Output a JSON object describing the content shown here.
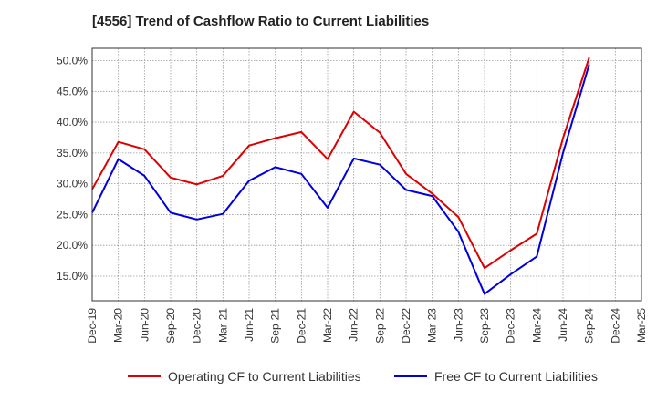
{
  "title": "[4556]  Trend of Cashflow Ratio to Current Liabilities",
  "chart_data": {
    "type": "line",
    "x": [
      "Dec-19",
      "Mar-20",
      "Jun-20",
      "Sep-20",
      "Dec-20",
      "Mar-21",
      "Jun-21",
      "Sep-21",
      "Dec-21",
      "Mar-22",
      "Jun-22",
      "Sep-22",
      "Dec-22",
      "Mar-23",
      "Jun-23",
      "Sep-23",
      "Dec-23",
      "Mar-24",
      "Jun-24",
      "Sep-24",
      "Dec-24",
      "Mar-25"
    ],
    "ylim": [
      11.0,
      52.0
    ],
    "yticks": [
      15.0,
      20.0,
      25.0,
      30.0,
      35.0,
      40.0,
      45.0,
      50.0
    ],
    "ytick_labels": [
      "15.0%",
      "20.0%",
      "25.0%",
      "30.0%",
      "35.0%",
      "40.0%",
      "45.0%",
      "50.0%"
    ],
    "grid": true,
    "legend_position": "bottom",
    "series": [
      {
        "name": "Operating CF to Current Liabilities",
        "color": "#dd0000",
        "values": [
          29.1,
          36.8,
          35.6,
          31.0,
          29.9,
          31.3,
          36.2,
          37.4,
          38.4,
          34.0,
          41.7,
          38.3,
          31.6,
          28.4,
          24.6,
          16.3,
          19.2,
          21.9,
          37.4,
          50.5,
          null,
          null
        ]
      },
      {
        "name": "Free CF to Current Liabilities",
        "color": "#0000dd",
        "values": [
          25.3,
          34.0,
          31.3,
          25.3,
          24.2,
          25.1,
          30.5,
          32.7,
          31.6,
          26.1,
          34.1,
          33.1,
          29.0,
          28.0,
          22.2,
          12.1,
          15.3,
          18.2,
          35.0,
          49.4,
          null,
          null
        ]
      }
    ]
  }
}
